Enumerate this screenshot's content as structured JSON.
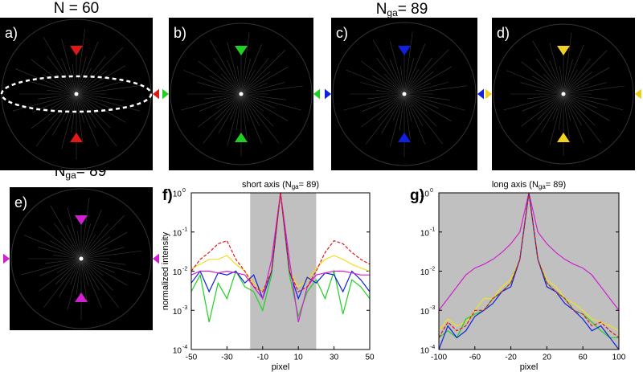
{
  "panels": [
    {
      "label": "a)",
      "color": "#e01818"
    },
    {
      "label": "b)",
      "color": "#20d020"
    },
    {
      "label": "c)",
      "color": "#1020e0"
    },
    {
      "label": "d)",
      "color": "#f0d020"
    },
    {
      "label": "e)",
      "color": "#d020d0"
    }
  ],
  "headings": [
    {
      "text": "N = 60"
    },
    {
      "pre": "N",
      "sub": "ga",
      "post": "= 89"
    },
    {
      "pre": "N",
      "sub": "ga",
      "post": "= 89"
    }
  ],
  "chart_data": [
    {
      "type": "line",
      "panel": "f)",
      "title": "short axis (N",
      "title_sub": "ga",
      "title_end": "= 89)",
      "xlabel": "pixel",
      "ylabel": "normalized intensity",
      "log_y": true,
      "shade": [
        -17,
        20
      ],
      "shade_color": "#c0c0c0",
      "xlim": [
        -50,
        50
      ],
      "xticks": [
        -50,
        -30,
        -10,
        10,
        30,
        50
      ],
      "ylim": [
        0.0001,
        1
      ],
      "yticks": [
        {
          "value": 0.0001,
          "label": "10",
          "exp": "-4"
        },
        {
          "value": 0.001,
          "label": "10",
          "exp": "-3"
        },
        {
          "value": 0.01,
          "label": "10",
          "exp": "-2"
        },
        {
          "value": 0.1,
          "label": "10",
          "exp": "-1"
        },
        {
          "value": 1,
          "label": "10",
          "exp": "0"
        }
      ],
      "x": [
        -50,
        -45,
        -40,
        -35,
        -30,
        -25,
        -20,
        -15,
        -10,
        -5,
        0,
        5,
        10,
        15,
        20,
        25,
        30,
        35,
        40,
        45,
        50
      ],
      "series": [
        {
          "color": "#20d020",
          "values": [
            0.003,
            0.008,
            0.0005,
            0.005,
            0.002,
            0.01,
            0.004,
            0.003,
            0.001,
            0.008,
            1,
            0.008,
            0.0007,
            0.003,
            0.006,
            0.002,
            0.01,
            0.0008,
            0.006,
            0.004,
            0.002
          ]
        },
        {
          "color": "#f0e020",
          "values": [
            0.012,
            0.015,
            0.02,
            0.02,
            0.025,
            0.015,
            0.01,
            0.005,
            0.003,
            0.01,
            1,
            0.01,
            0.004,
            0.006,
            0.012,
            0.02,
            0.025,
            0.02,
            0.015,
            0.012,
            0.01
          ]
        },
        {
          "color": "#1020e0",
          "values": [
            0.005,
            0.01,
            0.003,
            0.009,
            0.008,
            0.01,
            0.005,
            0.008,
            0.002,
            0.01,
            1,
            0.01,
            0.002,
            0.007,
            0.005,
            0.009,
            0.008,
            0.003,
            0.01,
            0.006,
            0.003
          ]
        },
        {
          "color": "#d020d0",
          "values": [
            0.008,
            0.01,
            0.01,
            0.009,
            0.01,
            0.009,
            0.008,
            0.004,
            0.002,
            0.02,
            1,
            0.02,
            0.0005,
            0.004,
            0.008,
            0.009,
            0.01,
            0.01,
            0.009,
            0.008,
            0.008
          ]
        },
        {
          "color": "#e01818",
          "dash": true,
          "values": [
            0.01,
            0.02,
            0.03,
            0.05,
            0.06,
            0.02,
            0.01,
            0.004,
            0.003,
            0.01,
            1,
            0.01,
            0.003,
            0.004,
            0.01,
            0.03,
            0.06,
            0.05,
            0.03,
            0.02,
            0.015
          ]
        }
      ]
    },
    {
      "type": "line",
      "panel": "g)",
      "title": "long axis (N",
      "title_sub": "ga",
      "title_end": "= 89)",
      "xlabel": "pixel",
      "log_y": true,
      "shade": [
        -100,
        100
      ],
      "shade_color": "#c0c0c0",
      "xlim": [
        -100,
        100
      ],
      "xticks": [
        -100,
        -60,
        -20,
        20,
        60,
        100
      ],
      "ylim": [
        0.0001,
        1
      ],
      "yticks": [
        {
          "value": 0.0001,
          "label": "10",
          "exp": "-4"
        },
        {
          "value": 0.001,
          "label": "10",
          "exp": "-3"
        },
        {
          "value": 0.01,
          "label": "10",
          "exp": "-2"
        },
        {
          "value": 0.1,
          "label": "10",
          "exp": "-1"
        },
        {
          "value": 1,
          "label": "10",
          "exp": "0"
        }
      ],
      "x": [
        -100,
        -90,
        -80,
        -70,
        -60,
        -50,
        -40,
        -30,
        -20,
        -10,
        0,
        10,
        20,
        30,
        40,
        50,
        60,
        70,
        80,
        90,
        100
      ],
      "series": [
        {
          "color": "#d020d0",
          "values": [
            0.001,
            0.002,
            0.004,
            0.008,
            0.012,
            0.015,
            0.02,
            0.03,
            0.05,
            0.1,
            1,
            0.1,
            0.05,
            0.03,
            0.02,
            0.015,
            0.012,
            0.008,
            0.004,
            0.002,
            0.001
          ]
        },
        {
          "color": "#f0e020",
          "values": [
            0.0003,
            0.0006,
            0.0004,
            0.0005,
            0.001,
            0.002,
            0.002,
            0.004,
            0.006,
            0.02,
            1,
            0.02,
            0.006,
            0.004,
            0.002,
            0.0015,
            0.001,
            0.0006,
            0.0005,
            0.0004,
            0.0003
          ]
        },
        {
          "color": "#20d020",
          "values": [
            0.0002,
            0.0003,
            0.0002,
            0.0006,
            0.0008,
            0.001,
            0.002,
            0.003,
            0.005,
            0.02,
            1,
            0.02,
            0.005,
            0.003,
            0.002,
            0.001,
            0.0008,
            0.0005,
            0.0003,
            0.0002,
            0.0002
          ]
        },
        {
          "color": "#1020e0",
          "values": [
            0.0001,
            0.0004,
            0.0002,
            0.0003,
            0.0007,
            0.001,
            0.0015,
            0.003,
            0.004,
            0.02,
            1,
            0.02,
            0.004,
            0.003,
            0.0015,
            0.001,
            0.0006,
            0.0003,
            0.0004,
            0.0002,
            0.0001
          ]
        },
        {
          "color": "#e01818",
          "dash": true,
          "values": [
            0.0002,
            0.0005,
            0.0003,
            0.0004,
            0.001,
            0.001,
            0.002,
            0.003,
            0.005,
            0.02,
            1,
            0.02,
            0.005,
            0.003,
            0.002,
            0.001,
            0.0008,
            0.0004,
            0.0005,
            0.0003,
            0.0002
          ]
        }
      ]
    }
  ]
}
